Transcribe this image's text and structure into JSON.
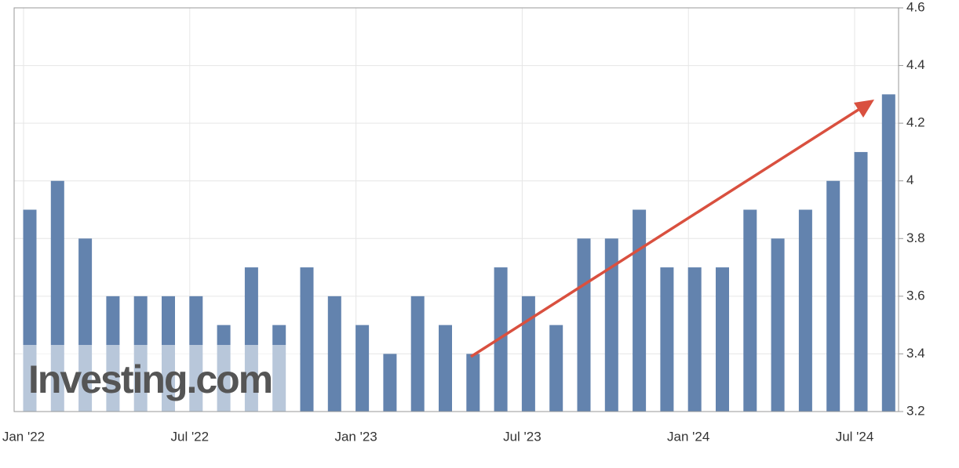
{
  "chart_data": {
    "type": "bar",
    "categories": [
      "Jan '22",
      null,
      null,
      null,
      null,
      null,
      "Jul '22",
      null,
      null,
      null,
      null,
      null,
      "Jan '23",
      null,
      null,
      null,
      null,
      null,
      "Jul '23",
      null,
      null,
      null,
      null,
      null,
      "Jan '24",
      null,
      null,
      null,
      null,
      null,
      "Jul '24",
      null
    ],
    "values": [
      3.9,
      4.0,
      3.8,
      3.6,
      3.6,
      3.6,
      3.6,
      3.5,
      3.7,
      3.5,
      3.7,
      3.6,
      3.5,
      3.4,
      3.6,
      3.5,
      3.4,
      3.7,
      3.6,
      3.5,
      3.8,
      3.8,
      3.9,
      3.7,
      3.7,
      3.7,
      3.9,
      3.8,
      3.9,
      4.0,
      4.1,
      4.3
    ],
    "color": "#6383ae",
    "ylim": [
      3.2,
      4.6
    ],
    "yticks": [
      3.2,
      3.4,
      3.6,
      3.8,
      4,
      4.2,
      4.4,
      4.6
    ],
    "grid": true,
    "watermark": "Investing.com"
  }
}
